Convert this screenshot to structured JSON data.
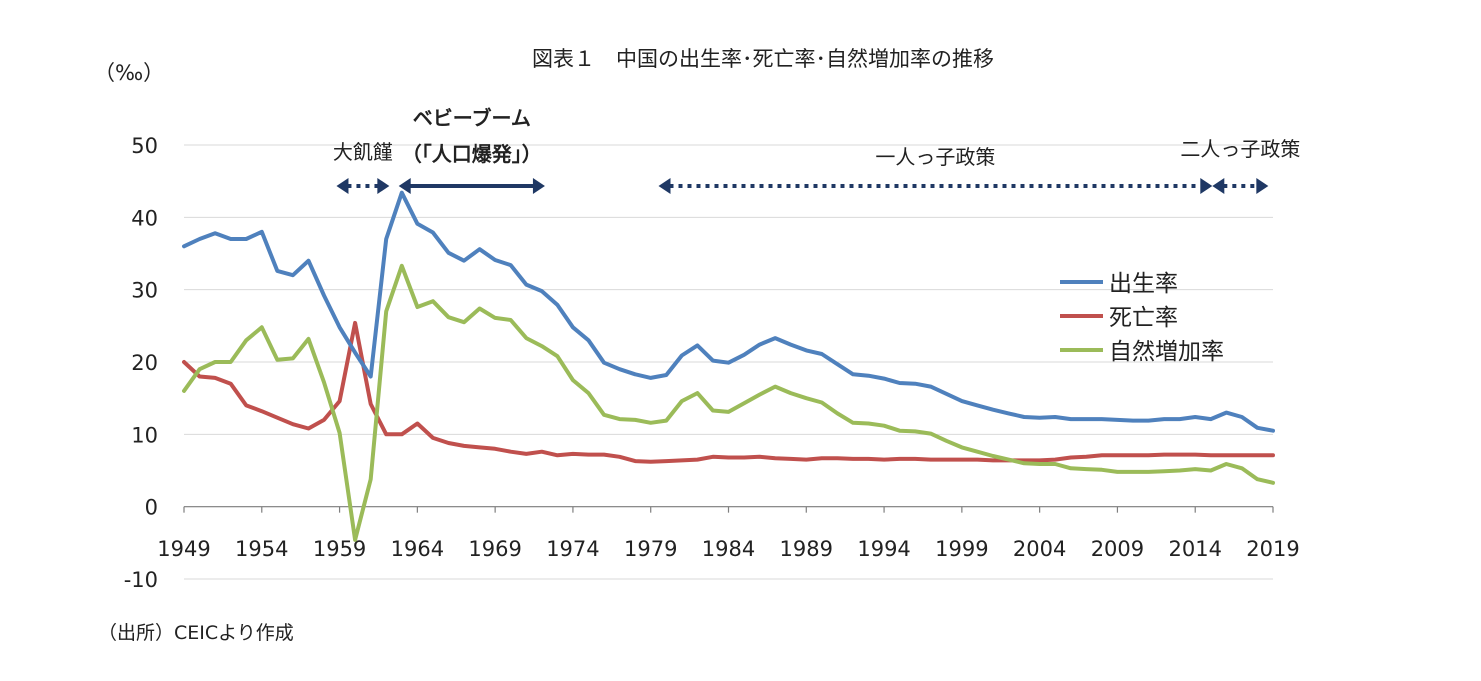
{
  "chart_data": {
    "type": "line",
    "title": "図表１　中国の出生率･死亡率･自然増加率の推移",
    "ylabel": "（‰）",
    "source": "（出所）CEICより作成",
    "ylim": [
      -10,
      50
    ],
    "y_ticks": [
      -10,
      0,
      10,
      20,
      30,
      40,
      50
    ],
    "x_tick_years": [
      1949,
      1954,
      1959,
      1964,
      1969,
      1974,
      1979,
      1984,
      1989,
      1994,
      1999,
      2004,
      2009,
      2014,
      2019
    ],
    "x_start": 1949,
    "x_end": 2019,
    "grid": true,
    "legend_position": "right",
    "series": [
      {
        "name": "出生率",
        "color": "#4F81BD",
        "values": [
          36.0,
          37.0,
          37.8,
          37.0,
          37.0,
          38.0,
          32.6,
          32.0,
          34.0,
          29.2,
          24.8,
          21.3,
          18.0,
          37.0,
          43.4,
          39.1,
          37.9,
          35.1,
          34.0,
          35.6,
          34.1,
          33.4,
          30.7,
          29.8,
          27.9,
          24.8,
          23.0,
          19.9,
          19.0,
          18.3,
          17.8,
          18.2,
          20.9,
          22.3,
          20.2,
          19.9,
          21.0,
          22.4,
          23.3,
          22.4,
          21.6,
          21.1,
          19.7,
          18.3,
          18.1,
          17.7,
          17.1,
          17.0,
          16.6,
          15.6,
          14.6,
          14.0,
          13.4,
          12.9,
          12.4,
          12.3,
          12.4,
          12.1,
          12.1,
          12.1,
          12.0,
          11.9,
          11.9,
          12.1,
          12.1,
          12.4,
          12.1,
          13.0,
          12.4,
          10.9,
          10.5
        ]
      },
      {
        "name": "死亡率",
        "color": "#C0504D",
        "values": [
          20.0,
          18.0,
          17.8,
          17.0,
          14.0,
          13.2,
          12.3,
          11.4,
          10.8,
          12.0,
          14.6,
          25.4,
          14.2,
          10.0,
          10.0,
          11.5,
          9.5,
          8.8,
          8.4,
          8.2,
          8.0,
          7.6,
          7.3,
          7.6,
          7.1,
          7.3,
          7.2,
          7.2,
          6.9,
          6.3,
          6.2,
          6.3,
          6.4,
          6.5,
          6.9,
          6.8,
          6.8,
          6.9,
          6.7,
          6.6,
          6.5,
          6.7,
          6.7,
          6.6,
          6.6,
          6.5,
          6.6,
          6.6,
          6.5,
          6.5,
          6.5,
          6.5,
          6.4,
          6.4,
          6.4,
          6.4,
          6.5,
          6.8,
          6.9,
          7.1,
          7.1,
          7.1,
          7.1,
          7.2,
          7.2,
          7.2,
          7.1,
          7.1,
          7.1,
          7.1,
          7.1
        ]
      },
      {
        "name": "自然増加率",
        "color": "#9BBB59",
        "values": [
          16.0,
          19.0,
          20.0,
          20.0,
          23.0,
          24.8,
          20.3,
          20.5,
          23.2,
          17.2,
          10.2,
          -4.6,
          3.8,
          27.0,
          33.3,
          27.6,
          28.4,
          26.2,
          25.5,
          27.4,
          26.1,
          25.8,
          23.3,
          22.2,
          20.8,
          17.5,
          15.7,
          12.7,
          12.1,
          12.0,
          11.6,
          11.9,
          14.6,
          15.7,
          13.3,
          13.1,
          14.3,
          15.5,
          16.6,
          15.7,
          15.0,
          14.4,
          12.9,
          11.6,
          11.5,
          11.2,
          10.5,
          10.4,
          10.1,
          9.1,
          8.2,
          7.6,
          7.0,
          6.5,
          6.0,
          5.9,
          5.9,
          5.3,
          5.2,
          5.1,
          4.8,
          4.8,
          4.8,
          4.9,
          5.0,
          5.2,
          5.0,
          5.9,
          5.3,
          3.8,
          3.3
        ]
      }
    ],
    "annotations": [
      {
        "label": "大飢饉",
        "from": 1958.8,
        "to": 1962.2,
        "style": "dotted",
        "line2": ""
      },
      {
        "label": "ベビーブーム",
        "from": 1962.8,
        "to": 1972.2,
        "style": "solid",
        "line2": "（「人口爆発」）"
      },
      {
        "label": "一人っ子政策",
        "from": 1979.5,
        "to": 2015.1,
        "style": "dotted",
        "line2": ""
      },
      {
        "label": "二人っ子政策",
        "from": 2015.1,
        "to": 2018.7,
        "style": "dotted",
        "line2": ""
      }
    ]
  }
}
